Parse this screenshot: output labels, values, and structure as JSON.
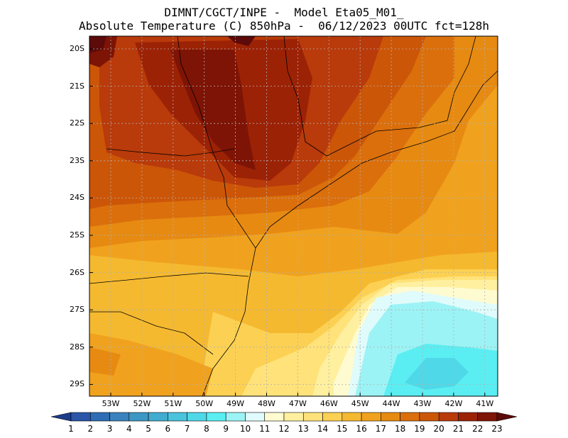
{
  "title": {
    "line1": "DIMNT/CGCT/INPE -  Model Eta05_M01_",
    "line2": "Absolute Temperature (C) 850hPa -  06/12/2023 00UTC fct=128h"
  },
  "map": {
    "lat_labels": [
      "20S",
      "21S",
      "22S",
      "23S",
      "24S",
      "25S",
      "26S",
      "27S",
      "28S",
      "29S"
    ],
    "lon_labels": [
      "53W",
      "52W",
      "51W",
      "50W",
      "49W",
      "48W",
      "47W",
      "46W",
      "45W",
      "44W",
      "43W",
      "42W",
      "41W"
    ]
  },
  "colorbar": {
    "labels": [
      "1",
      "2",
      "3",
      "4",
      "5",
      "6",
      "7",
      "8",
      "9",
      "10",
      "11",
      "12",
      "13",
      "14",
      "15",
      "16",
      "17",
      "18",
      "19",
      "20",
      "21",
      "22",
      "23"
    ],
    "colors": [
      "#1e3c8c",
      "#2a55a8",
      "#2f6db5",
      "#3a82bd",
      "#3d97c4",
      "#41acd0",
      "#4ac3dc",
      "#4fd8e8",
      "#5aeef2",
      "#9cf3f5",
      "#e0fbfb",
      "#fffbd0",
      "#fff0a0",
      "#ffe27a",
      "#fcd153",
      "#f5b930",
      "#f0a21e",
      "#e78a12",
      "#db6f0c",
      "#cc5608",
      "#b93a0a",
      "#9c2206",
      "#7e1405",
      "#5c0a0a"
    ]
  }
}
